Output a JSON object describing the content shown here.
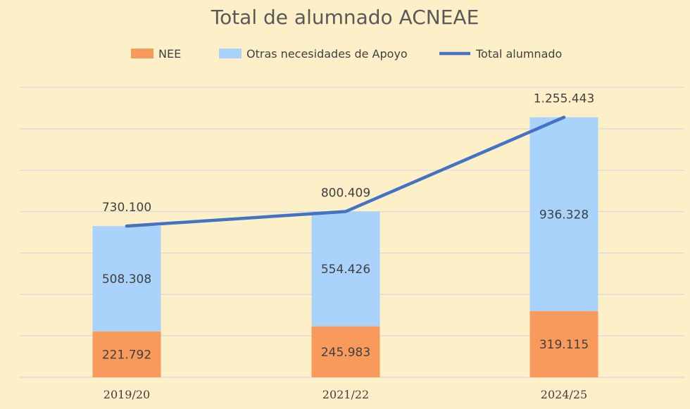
{
  "chart_data": {
    "type": "bar",
    "title": "Total de alumnado ACNEAE",
    "stacked": true,
    "categories": [
      "2019/20",
      "2021/22",
      "2024/25"
    ],
    "series": [
      {
        "name": "NEE",
        "kind": "bar",
        "values": [
          221792,
          245983,
          319115
        ],
        "labels": [
          "221.792",
          "245.983",
          "319.115"
        ]
      },
      {
        "name": "Otras necesidades de Apoyo",
        "kind": "bar",
        "values": [
          508308,
          554426,
          936328
        ],
        "labels": [
          "508.308",
          "554.426",
          "936.328"
        ]
      },
      {
        "name": "Total alumnado",
        "kind": "line",
        "values": [
          730100,
          800409,
          1255443
        ],
        "labels": [
          "730.100",
          "800.409",
          "1.255.443"
        ]
      }
    ],
    "ylim": [
      0,
      1400000
    ],
    "grid": true,
    "legend_position": "top",
    "colors": {
      "background": "#fdefc8",
      "NEE": "#f79a5c",
      "Otras necesidades de Apoyo": "#a9d3fb",
      "Total alumnado": "#4472c4",
      "gridline": "#d9d9d9"
    }
  }
}
